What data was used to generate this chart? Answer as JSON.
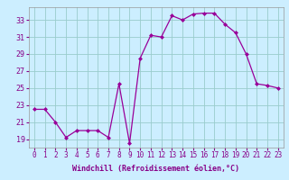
{
  "x": [
    0,
    1,
    2,
    3,
    4,
    5,
    6,
    7,
    8,
    9,
    10,
    11,
    12,
    13,
    14,
    15,
    16,
    17,
    18,
    19,
    20,
    21,
    22,
    23
  ],
  "y": [
    22.5,
    22.5,
    21.0,
    19.2,
    20.0,
    20.0,
    20.0,
    19.2,
    25.5,
    18.5,
    28.5,
    31.2,
    31.0,
    33.5,
    33.0,
    33.7,
    33.8,
    33.8,
    32.5,
    31.5,
    29.0,
    25.5,
    25.3,
    25.0
  ],
  "line_color": "#990099",
  "marker": "D",
  "marker_color": "#990099",
  "marker_size": 2.0,
  "xlabel": "Windchill (Refroidissement éolien,°C)",
  "bg_color": "#cceeff",
  "grid_color": "#99cccc",
  "tick_color": "#880088",
  "ylim": [
    18.0,
    34.5
  ],
  "xlim": [
    -0.5,
    23.5
  ],
  "yticks": [
    19,
    21,
    23,
    25,
    27,
    29,
    31,
    33
  ],
  "xticks": [
    0,
    1,
    2,
    3,
    4,
    5,
    6,
    7,
    8,
    9,
    10,
    11,
    12,
    13,
    14,
    15,
    16,
    17,
    18,
    19,
    20,
    21,
    22,
    23
  ],
  "tick_fontsize": 5.5,
  "xlabel_fontsize": 6.0,
  "linewidth": 0.9
}
